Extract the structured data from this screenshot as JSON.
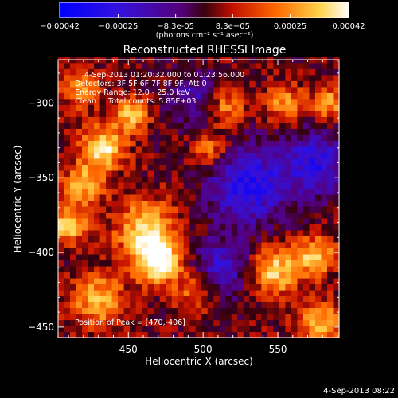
{
  "chart_data": {
    "type": "heatmap",
    "title": "Reconstructed RHESSI Image",
    "xlabel": "Heliocentric X (arcsec)",
    "ylabel": "Heliocentric Y (arcsec)",
    "xlim": [
      403,
      591
    ],
    "ylim": [
      -457,
      -271
    ],
    "xticks": [
      450,
      500,
      550
    ],
    "yticks": [
      -300,
      -350,
      -400,
      -450
    ],
    "colorbar": {
      "range": [
        -0.00042,
        0.00042
      ],
      "tick_values": [
        -0.00042,
        -0.00025,
        -8.3e-05,
        8.3e-05,
        0.00025,
        0.00042
      ],
      "tick_labels": [
        "-0.00042",
        "-0.00025",
        "-8.3e-05",
        "8.3e-05",
        "0.00025",
        "0.00042"
      ],
      "unit_label": "(photons cm⁻² s⁻¹ asec⁻²)"
    },
    "annotations": {
      "time_range": "4-Sep-2013 01:20:32.000 to 01:23:56.000",
      "detectors": "Detectors: 3F 5F 6F 7F 8F 9F, Att 0",
      "energy": "Energy Range: 12.0 - 25.0 keV",
      "clean": "Clean     Total counts: 5.85E+03",
      "peak": "Position of Peak = [470,-406]"
    },
    "peak": [
      470,
      -406
    ],
    "sources": [
      {
        "x": 470,
        "y": -406,
        "amp": 1.0,
        "sigma": 10
      },
      {
        "x": 462,
        "y": -385,
        "amp": 0.75,
        "sigma": 14
      },
      {
        "x": 433,
        "y": -330,
        "amp": 0.85,
        "sigma": 10
      },
      {
        "x": 452,
        "y": -308,
        "amp": 0.65,
        "sigma": 8
      },
      {
        "x": 410,
        "y": -382,
        "amp": 0.8,
        "sigma": 8
      },
      {
        "x": 420,
        "y": -355,
        "amp": 0.6,
        "sigma": 10
      },
      {
        "x": 548,
        "y": -412,
        "amp": 0.75,
        "sigma": 11
      },
      {
        "x": 575,
        "y": -402,
        "amp": 0.7,
        "sigma": 9
      },
      {
        "x": 578,
        "y": -447,
        "amp": 0.65,
        "sigma": 10
      },
      {
        "x": 555,
        "y": -300,
        "amp": 0.55,
        "sigma": 9
      },
      {
        "x": 515,
        "y": -302,
        "amp": 0.5,
        "sigma": 9
      },
      {
        "x": 585,
        "y": -300,
        "amp": 0.55,
        "sigma": 8
      },
      {
        "x": 430,
        "y": -432,
        "amp": 0.65,
        "sigma": 12
      },
      {
        "x": 505,
        "y": -332,
        "amp": 0.5,
        "sigma": 8
      },
      {
        "x": 495,
        "y": -425,
        "amp": 0.45,
        "sigma": 9
      },
      {
        "x": 418,
        "y": -290,
        "amp": 0.5,
        "sigma": 9
      }
    ],
    "negative_regions": [
      {
        "x": 530,
        "y": -355,
        "amp": 0.8,
        "sigma": 18
      },
      {
        "x": 575,
        "y": -340,
        "amp": 0.7,
        "sigma": 15
      },
      {
        "x": 512,
        "y": -410,
        "amp": 0.55,
        "sigma": 13
      },
      {
        "x": 495,
        "y": -295,
        "amp": 0.45,
        "sigma": 12
      }
    ]
  },
  "footer": {
    "timestamp": "4-Sep-2013 08:22"
  }
}
